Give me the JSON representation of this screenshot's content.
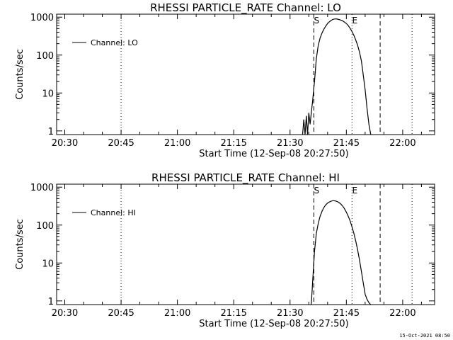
{
  "footer": {
    "timestamp": "15-Oct-2021 08:50"
  },
  "chart_data": [
    {
      "type": "line",
      "title": "RHESSI PARTICLE_RATE Channel: LO",
      "xlabel": "Start Time (12-Sep-08 20:27:50)",
      "ylabel": "Counts/sec",
      "yscale": "log",
      "ylim": [
        0.8,
        1200
      ],
      "xlim": [
        "20:27:50",
        "22:08:30"
      ],
      "x_ticks": [
        "20:30",
        "20:45",
        "21:00",
        "21:15",
        "21:30",
        "21:45",
        "22:00"
      ],
      "y_ticks": [
        "1",
        "10",
        "100",
        "1000"
      ],
      "legend": {
        "label": "Channel: LO",
        "placement": "top-left"
      },
      "markers": [
        {
          "label": "S",
          "time": "21:36:20",
          "style": "dashed"
        },
        {
          "label": "E",
          "time": "21:46:30",
          "style": "dotted"
        }
      ],
      "vlines": [
        {
          "time": "20:45:00",
          "style": "dotted"
        },
        {
          "time": "21:54:00",
          "style": "dashed"
        },
        {
          "time": "22:02:30",
          "style": "dotted"
        }
      ],
      "series": [
        {
          "name": "Channel: LO",
          "x": [
            "21:33:20",
            "21:33:40",
            "21:34:00",
            "21:34:20",
            "21:34:40",
            "21:35:00",
            "21:35:20",
            "21:35:40",
            "21:36:00",
            "21:36:30",
            "21:37:00",
            "21:37:30",
            "21:38:00",
            "21:38:30",
            "21:39:00",
            "21:39:30",
            "21:40:00",
            "21:40:30",
            "21:41:00",
            "21:41:30",
            "21:42:00",
            "21:42:30",
            "21:43:00",
            "21:43:30",
            "21:44:00",
            "21:44:30",
            "21:45:00",
            "21:45:30",
            "21:46:00",
            "21:46:30",
            "21:47:00",
            "21:47:30",
            "21:48:00",
            "21:48:30",
            "21:49:00",
            "21:49:30",
            "21:50:00",
            "21:50:30",
            "21:51:00",
            "21:51:30"
          ],
          "y": [
            0.8,
            2,
            0.8,
            2.5,
            0.8,
            3,
            1.5,
            3,
            6,
            20,
            80,
            180,
            280,
            380,
            480,
            580,
            680,
            760,
            830,
            880,
            900,
            890,
            870,
            840,
            800,
            740,
            680,
            600,
            510,
            420,
            330,
            250,
            180,
            120,
            70,
            30,
            12,
            4,
            1.5,
            0.8
          ]
        }
      ]
    },
    {
      "type": "line",
      "title": "RHESSI PARTICLE_RATE Channel: HI",
      "xlabel": "Start Time (12-Sep-08 20:27:50)",
      "ylabel": "Counts/sec",
      "yscale": "log",
      "ylim": [
        0.8,
        1200
      ],
      "xlim": [
        "20:27:50",
        "22:08:30"
      ],
      "x_ticks": [
        "20:30",
        "20:45",
        "21:00",
        "21:15",
        "21:30",
        "21:45",
        "22:00"
      ],
      "y_ticks": [
        "1",
        "10",
        "100",
        "1000"
      ],
      "legend": {
        "label": "Channel: HI",
        "placement": "top-left"
      },
      "markers": [
        {
          "label": "S",
          "time": "21:36:20",
          "style": "dashed"
        },
        {
          "label": "E",
          "time": "21:46:30",
          "style": "dotted"
        }
      ],
      "vlines": [
        {
          "time": "20:45:00",
          "style": "dotted"
        },
        {
          "time": "21:54:00",
          "style": "dashed"
        },
        {
          "time": "22:02:30",
          "style": "dotted"
        }
      ],
      "series": [
        {
          "name": "Channel: HI",
          "x": [
            "21:35:40",
            "21:36:00",
            "21:36:30",
            "21:37:00",
            "21:37:30",
            "21:38:00",
            "21:38:30",
            "21:39:00",
            "21:39:30",
            "21:40:00",
            "21:40:30",
            "21:41:00",
            "21:41:30",
            "21:42:00",
            "21:42:30",
            "21:43:00",
            "21:43:30",
            "21:44:00",
            "21:44:30",
            "21:45:00",
            "21:45:30",
            "21:46:00",
            "21:46:30",
            "21:47:00",
            "21:47:30",
            "21:48:00",
            "21:48:30",
            "21:49:00",
            "21:49:30",
            "21:50:00",
            "21:50:30",
            "21:51:00",
            "21:51:30"
          ],
          "y": [
            0.8,
            3,
            20,
            60,
            110,
            170,
            230,
            290,
            340,
            380,
            410,
            430,
            440,
            435,
            420,
            395,
            360,
            320,
            270,
            220,
            170,
            130,
            90,
            60,
            38,
            22,
            12,
            6,
            3,
            1.5,
            1.1,
            0.9,
            0.8
          ]
        }
      ]
    }
  ]
}
